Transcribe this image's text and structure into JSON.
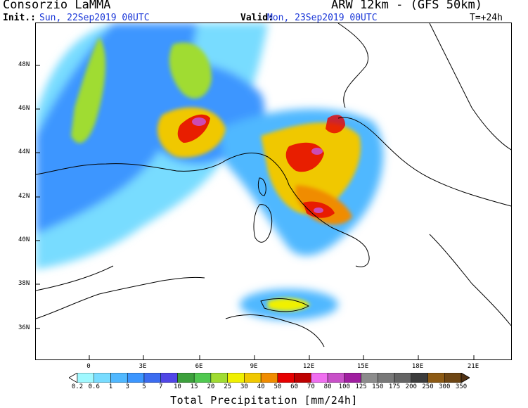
{
  "header": {
    "organization": "Consorzio LaMMA",
    "model": "ARW 12km - (GFS 50km)",
    "init_label": "Init.:",
    "init_value": "Sun, 22Sep2019 00UTC",
    "valid_label": "Valid:",
    "valid_value": "Mon, 23Sep2019 00UTC",
    "lead_time": "T=+24h"
  },
  "map": {
    "latitude_labels": [
      "48N",
      "46N",
      "44N",
      "42N",
      "40N",
      "38N",
      "36N"
    ],
    "longitude_labels": [
      "0",
      "3E",
      "6E",
      "9E",
      "12E",
      "15E",
      "18E",
      "21E"
    ],
    "field": "precipitation",
    "color_scale": {
      "title": "Total Precipitation [mm/24h]",
      "thresholds": [
        "0.2",
        "0.6",
        "1",
        "3",
        "5",
        "7",
        "10",
        "15",
        "20",
        "25",
        "30",
        "40",
        "50",
        "60",
        "70",
        "80",
        "100",
        "125",
        "150",
        "175",
        "200",
        "250",
        "300",
        "350"
      ],
      "colors": [
        "#a0f8ff",
        "#78dcff",
        "#50b8ff",
        "#3c96ff",
        "#3c6cf0",
        "#5046e6",
        "#3ca03c",
        "#50c850",
        "#a0dc32",
        "#f0f000",
        "#f0c800",
        "#f08c00",
        "#e60000",
        "#be0000",
        "#f06ef0",
        "#c850c8",
        "#a01ea0",
        "#8c8c8c",
        "#787878",
        "#646464",
        "#3c3c3c",
        "#8c5a14",
        "#6e4614",
        "#503214"
      ]
    }
  }
}
